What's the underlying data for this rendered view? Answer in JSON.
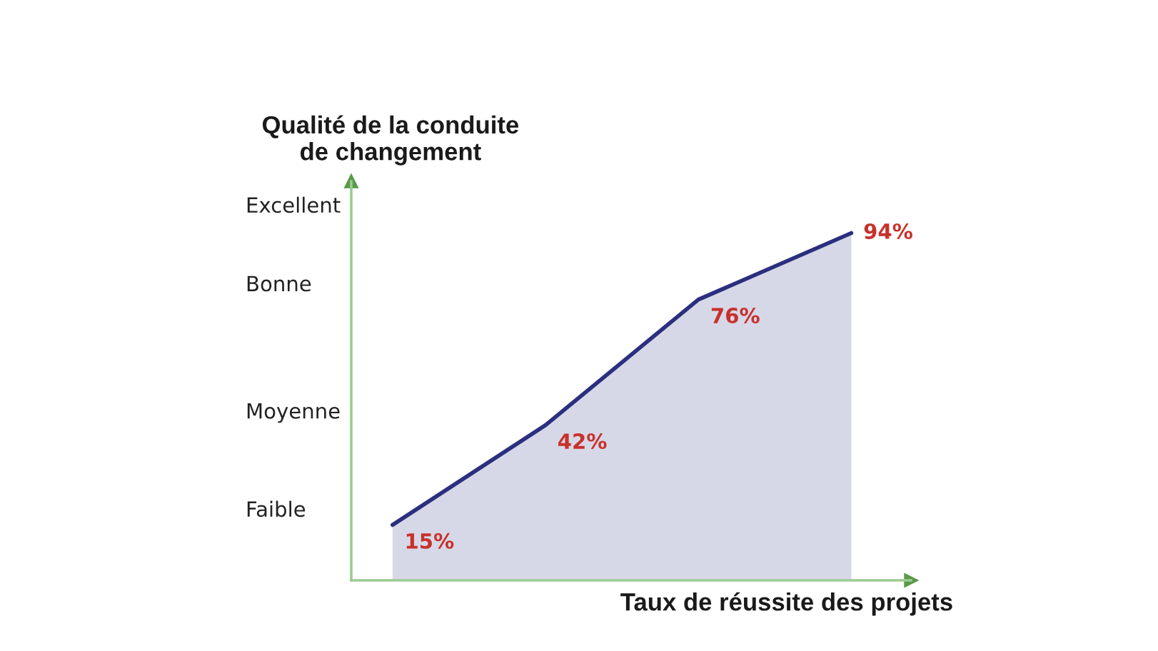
{
  "chart_data": {
    "type": "area",
    "ylabel": "Qualité de la conduite\nde changement",
    "xlabel": "Taux de réussite des projets",
    "categories": [
      null,
      null,
      null,
      null
    ],
    "series": [
      {
        "color": "#2b2f7f",
        "values": [
          15,
          42,
          76,
          94
        ],
        "value_labels": [
          "15%",
          "42%",
          "76%",
          "94%"
        ]
      }
    ],
    "annotations": [
      "Excellent",
      "Bonne",
      "Moyenne",
      "Faible"
    ],
    "grid": false
  }
}
